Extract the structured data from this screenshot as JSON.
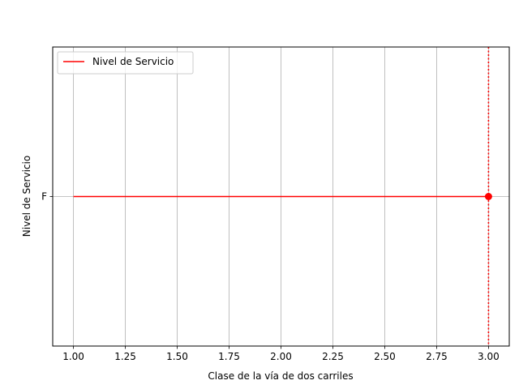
{
  "chart_data": {
    "type": "line",
    "title": "",
    "xlabel": "Clase de la vía de dos carriles",
    "ylabel": "Nivel de Servicio",
    "xlim": [
      0.9,
      3.1
    ],
    "x_ticks": [
      1.0,
      1.25,
      1.5,
      1.75,
      2.0,
      2.25,
      2.5,
      2.75,
      3.0
    ],
    "x_tick_labels": [
      "1.00",
      "1.25",
      "1.50",
      "1.75",
      "2.00",
      "2.25",
      "2.50",
      "2.75",
      "3.00"
    ],
    "y_categories": [
      "F"
    ],
    "grid": true,
    "legend_position": "top-left",
    "series": [
      {
        "name": "Nivel de Servicio",
        "color": "#ff0000",
        "points": [
          {
            "x": 1.0,
            "y": "F"
          },
          {
            "x": 3.0,
            "y": "F"
          }
        ]
      }
    ],
    "marker": {
      "x": 3.0,
      "y": "F",
      "color": "#ff0000"
    },
    "vline": {
      "x": 3.0,
      "style": "dotted",
      "color": "#ff0000"
    }
  }
}
